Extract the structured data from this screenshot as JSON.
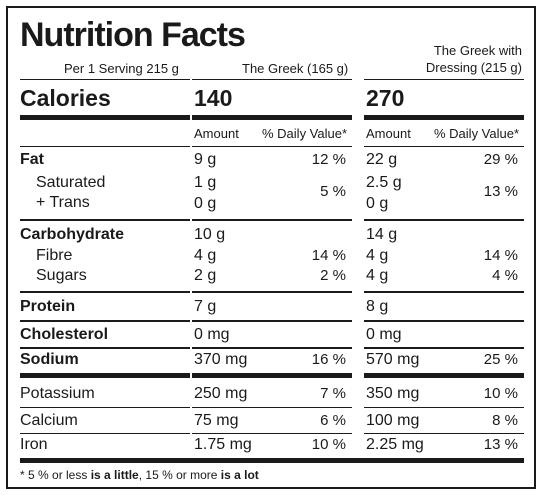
{
  "title": "Nutrition Facts",
  "serving": "Per 1 Serving 215 g",
  "col1_header": "The Greek  (165 g)",
  "col2_header_line1": "The Greek with",
  "col2_header_line2": "Dressing (215 g)",
  "calories_label": "Calories",
  "calories_col1": "140",
  "calories_col2": "270",
  "amount_label": "Amount",
  "dv_label": "% Daily Value*",
  "nutrients": {
    "fat": {
      "label": "Fat",
      "c1": "9 g",
      "p1": "12 %",
      "c2": "22 g",
      "p2": "29 %"
    },
    "saturated": {
      "label": "Saturated",
      "c1": "1 g",
      "c2": "2.5 g"
    },
    "trans": {
      "label": "+ Trans",
      "c1": "0 g",
      "c2": "0 g"
    },
    "sat_trans_pct": {
      "p1": "5 %",
      "p2": "13 %"
    },
    "carbohydrate": {
      "label": "Carbohydrate",
      "c1": "10 g",
      "c2": "14 g"
    },
    "fibre": {
      "label": "Fibre",
      "c1": "4 g",
      "p1": "14 %",
      "c2": "4 g",
      "p2": "14 %"
    },
    "sugars": {
      "label": "Sugars",
      "c1": "2 g",
      "p1": "2 %",
      "c2": "4 g",
      "p2": "4 %"
    },
    "protein": {
      "label": "Protein",
      "c1": "7 g",
      "c2": "8 g"
    },
    "cholesterol": {
      "label": "Cholesterol",
      "c1": "0 mg",
      "c2": "0 mg"
    },
    "sodium": {
      "label": "Sodium",
      "c1": "370 mg",
      "p1": "16 %",
      "c2": "570 mg",
      "p2": "25 %"
    },
    "potassium": {
      "label": "Potassium",
      "c1": "250 mg",
      "p1": "7 %",
      "c2": "350 mg",
      "p2": "10 %"
    },
    "calcium": {
      "label": "Calcium",
      "c1": "75 mg",
      "p1": "6 %",
      "c2": "100 mg",
      "p2": "8 %"
    },
    "iron": {
      "label": "Iron",
      "c1": "1.75 mg",
      "p1": "10 %",
      "c2": "2.25 mg",
      "p2": "13 %"
    }
  },
  "footnote": {
    "part1": "* 5 % or less ",
    "bold1": "is a little",
    "part2": ", 15 %  or more ",
    "bold2": "is a lot"
  }
}
